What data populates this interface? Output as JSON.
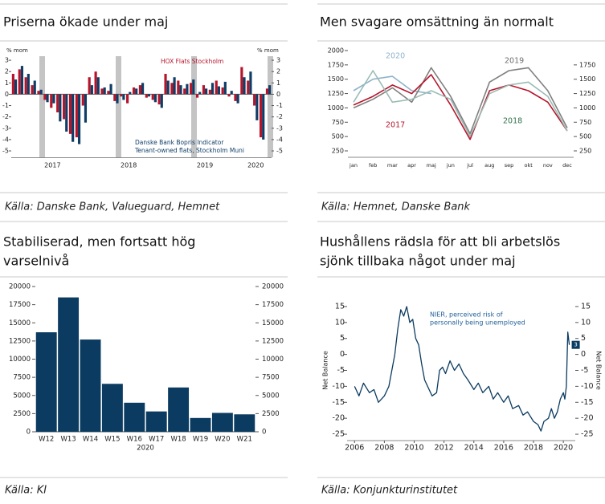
{
  "chart_data": [
    {
      "type": "bar",
      "title": [
        "Priserna ökade under maj"
      ],
      "source": "Källa: Danske Bank, Valueguard, Hemnet",
      "y_label": "% mom",
      "y2_label": "% mom",
      "categories": [
        null,
        null,
        null,
        null,
        null,
        null,
        "2017",
        null,
        null,
        null,
        null,
        null,
        null,
        null,
        null,
        null,
        null,
        null,
        "2018",
        null,
        null,
        null,
        null,
        null,
        null,
        null,
        null,
        null,
        null,
        null,
        "2019",
        null,
        null,
        null,
        null,
        null,
        null,
        null,
        "2020",
        null,
        null
      ],
      "series": [
        {
          "name": "HOX Flats Stockholm",
          "color": "#b5152b",
          "values": [
            1.8,
            2.2,
            1.5,
            0.8,
            0.3,
            -0.5,
            -1.2,
            -1.6,
            -2.2,
            -3.5,
            -3.8,
            -1.0,
            1.5,
            2.0,
            0.5,
            0.3,
            -0.6,
            -0.2,
            -0.8,
            0.6,
            0.8,
            -0.3,
            -0.5,
            -0.9,
            1.8,
            1.0,
            1.2,
            0.5,
            1.0,
            -0.3,
            0.8,
            0.4,
            1.2,
            0.6,
            -0.2,
            -0.6,
            2.4,
            1.2,
            -1.0,
            -3.8,
            0.5
          ]
        },
        {
          "name": "Danske Bank Bopris Indicator",
          "note": "Tenant-owned flats, Stockholm Muni",
          "color": "#0f3d66",
          "values": [
            1.3,
            2.5,
            1.8,
            1.2,
            0.4,
            -0.7,
            -0.8,
            -2.4,
            -3.3,
            -4.2,
            -4.4,
            -2.5,
            0.8,
            1.5,
            0.6,
            0.9,
            -0.8,
            -0.5,
            0.2,
            0.5,
            1.0,
            -0.2,
            -0.7,
            -1.2,
            1.2,
            1.5,
            0.8,
            0.9,
            1.3,
            0.2,
            0.5,
            1.0,
            0.7,
            1.1,
            0.3,
            -0.8,
            1.5,
            2.0,
            -2.3,
            -4.0,
            0.8
          ]
        }
      ],
      "ylim": [
        -5.6,
        3.5
      ],
      "yticks": [
        -5,
        -4,
        -3,
        -2,
        -1,
        0,
        1,
        2,
        3
      ],
      "y2lim": [
        -5.6,
        3.5
      ],
      "y2ticks": [
        -5,
        -4,
        -3,
        -2,
        -1,
        0,
        1,
        2,
        3
      ]
    },
    {
      "type": "line",
      "title": [
        "Men svagare omsättning än normalt"
      ],
      "source": "Källa: Hemnet, Danske Bank",
      "categories": [
        "jan",
        "feb",
        "mar",
        "apr",
        "maj",
        "jun",
        "jul",
        "aug",
        "sep",
        "okt",
        "nov",
        "dec"
      ],
      "series": [
        {
          "name": "2020",
          "color": "#8fb3c9",
          "label_color": "#8fb3c9",
          "values": [
            1300,
            1500,
            1550,
            1300,
            1250,
            null,
            null,
            null,
            null,
            null,
            null,
            null
          ]
        },
        {
          "name": "2019",
          "color": "#808080",
          "label_color": "#6e6e6e",
          "values": [
            1000,
            1150,
            1350,
            1100,
            1700,
            1200,
            550,
            1450,
            1650,
            1700,
            1300,
            650
          ]
        },
        {
          "name": "2017",
          "color": "#b5152b",
          "label_color": "#b5152b",
          "values": [
            1050,
            1200,
            1400,
            1250,
            1580,
            1050,
            450,
            1300,
            1400,
            1300,
            1100,
            600
          ]
        },
        {
          "name": "2018",
          "color": "#9cbcb6",
          "label_color": "#2e6e4a",
          "values": [
            1100,
            1650,
            1100,
            1150,
            1300,
            1150,
            500,
            1250,
            1400,
            1450,
            1200,
            600
          ]
        }
      ],
      "ylim": [
        250,
        2000
      ],
      "yticks": [
        250,
        500,
        750,
        1000,
        1250,
        1500,
        1750,
        2000
      ],
      "y2lim": [
        250,
        2000
      ],
      "y2ticks": [
        250,
        500,
        750,
        1000,
        1250,
        1500,
        1750
      ]
    },
    {
      "type": "bar",
      "title": [
        "Stabiliserad, men fortsatt hög",
        "varselnivå"
      ],
      "source": "Källa: KI",
      "categories": [
        "W12",
        "W13",
        "W14",
        "W15",
        "W16",
        "W17",
        "W18",
        "W19",
        "W20",
        "W21"
      ],
      "values": [
        13700,
        18500,
        12700,
        6600,
        4000,
        2800,
        6100,
        1900,
        2600,
        2400
      ],
      "color": "#0b3b60",
      "x_label": "2020",
      "ylim": [
        0,
        20000
      ],
      "yticks": [
        0,
        2500,
        5000,
        7500,
        10000,
        12500,
        15000,
        17500,
        20000
      ],
      "y2lim": [
        0,
        20000
      ],
      "y2ticks": [
        0,
        2500,
        5000,
        7500,
        10000,
        12500,
        15000,
        17500,
        20000
      ]
    },
    {
      "type": "line",
      "title": [
        "Hushållens rädsla för att bli arbetslös",
        "sjönk tillbaka något under maj"
      ],
      "source": "Källa: Konjunkturinstitutet",
      "y_label": "Net Balance",
      "y2_label": "Net Balance",
      "color": "#0b3b60",
      "annotation": [
        "NIER, perceived risk of",
        "personally being unemployed"
      ],
      "x": [
        2006.0,
        2006.3,
        2006.6,
        2007.0,
        2007.3,
        2007.6,
        2008.0,
        2008.3,
        2008.5,
        2008.7,
        2008.9,
        2009.1,
        2009.3,
        2009.5,
        2009.7,
        2009.9,
        2010.1,
        2010.3,
        2010.5,
        2010.7,
        2010.9,
        2011.2,
        2011.5,
        2011.7,
        2011.9,
        2012.1,
        2012.4,
        2012.7,
        2013.0,
        2013.3,
        2013.6,
        2014.0,
        2014.3,
        2014.6,
        2015.0,
        2015.3,
        2015.6,
        2016.0,
        2016.3,
        2016.6,
        2017.0,
        2017.3,
        2017.6,
        2018.0,
        2018.3,
        2018.5,
        2018.7,
        2019.0,
        2019.2,
        2019.4,
        2019.6,
        2019.8,
        2020.0,
        2020.1,
        2020.2,
        2020.3,
        2020.4
      ],
      "values": [
        -10,
        -13,
        -9,
        -12,
        -11,
        -15,
        -13,
        -10,
        -5,
        0,
        8,
        14,
        12,
        15,
        10,
        11,
        5,
        3,
        -3,
        -8,
        -10,
        -13,
        -12,
        -5,
        -4,
        -6,
        -2,
        -5,
        -3,
        -6,
        -8,
        -11,
        -9,
        -12,
        -10,
        -14,
        -12,
        -15,
        -13,
        -17,
        -16,
        -19,
        -18,
        -21,
        -22,
        -24,
        -21,
        -20,
        -17,
        -20,
        -18,
        -14,
        -12,
        -14,
        -10,
        7,
        3
      ],
      "xlim": [
        2005.5,
        2020.8
      ],
      "xticks": [
        2006,
        2008,
        2010,
        2012,
        2014,
        2016,
        2018,
        2020
      ],
      "ylim": [
        -27,
        17
      ],
      "yticks": [
        -25,
        -20,
        -15,
        -10,
        -5,
        0,
        5,
        10,
        15
      ],
      "y2lim": [
        -27,
        17
      ],
      "y2ticks": [
        -25,
        -20,
        -15,
        -10,
        -5,
        0,
        5,
        10,
        15
      ]
    }
  ]
}
